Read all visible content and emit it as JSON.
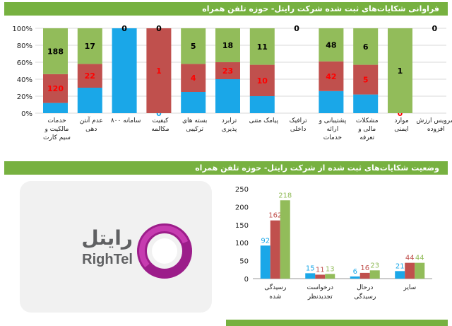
{
  "header1": {
    "title": "فراوانی شکایات‌های ثبت شده شرکت رایتل- حوزه تلفن همراه"
  },
  "header2": {
    "title": "وضعیت شکایات‌های ثبت شده از شرکت رایتل- حوزه تلفن همراه"
  },
  "logo": {
    "word": "رایتل",
    "brand": "RighTel"
  },
  "colors": {
    "green": "#92bc5a",
    "red": "#c0504d",
    "blue": "#1aa7e8",
    "band": "#77b140",
    "grid": "#d9d9d9"
  },
  "chart_data": [
    {
      "type": "bar",
      "stacked": "percent",
      "title": "فراوانی شکایات‌های ثبت شده شرکت رایتل- حوزه تلفن همراه",
      "ylim": [
        0,
        100
      ],
      "yticks": [
        "0%",
        "20%",
        "40%",
        "60%",
        "80%",
        "100%"
      ],
      "categories": [
        "خدمات مالکیت و سیم کارت",
        "عدم آنتن دهی",
        "سامانه ۸۰۰",
        "کیفیت مکالمه",
        "بسته های ترکیبی",
        "ترابرد پذیری",
        "پیامک متنی",
        "ترافیک داخلی",
        "پشتیبانی و ارائه خدمات",
        "مشکلات مالی و تعرفه",
        "موارد ایمنی",
        "سرویس ارزش افزوده"
      ],
      "series": [
        {
          "name": "blue",
          "values": [
            12,
            30,
            100,
            0,
            25,
            40,
            20,
            0,
            26,
            22,
            0,
            0
          ]
        },
        {
          "name": "red",
          "values": [
            34,
            28,
            0,
            100,
            33,
            20,
            37,
            0,
            35,
            35,
            0,
            0
          ]
        },
        {
          "name": "green",
          "values": [
            54,
            42,
            0,
            0,
            42,
            40,
            43,
            0,
            39,
            43,
            100,
            0
          ]
        }
      ],
      "labels": {
        "red": [
          "120",
          "22",
          "",
          "1",
          "4",
          "23",
          "10",
          "",
          "42",
          "5",
          "0",
          ""
        ],
        "green": [
          "188",
          "17",
          "",
          "",
          "5",
          "18",
          "11",
          "",
          "48",
          "6",
          "1",
          ""
        ],
        "blue": [
          "",
          "",
          "",
          "0",
          "",
          "",
          "",
          "",
          "",
          "",
          "",
          ""
        ],
        "top": [
          "",
          "",
          "0",
          "0",
          "",
          "",
          "",
          "0",
          "",
          "",
          "",
          "0"
        ]
      }
    },
    {
      "type": "bar",
      "title": "وضعیت شکایات‌های ثبت شده از شرکت رایتل- حوزه تلفن همراه",
      "ylim": [
        0,
        250
      ],
      "yticks": [
        "0",
        "50",
        "100",
        "150",
        "200",
        "250"
      ],
      "categories": [
        "رسیدگی شده",
        "درخواست تجدیدنظر",
        "درحال رسیدگی",
        "سایر"
      ],
      "series": [
        {
          "name": "blue",
          "values": [
            92,
            15,
            6,
            21
          ]
        },
        {
          "name": "red",
          "values": [
            162,
            11,
            16,
            44
          ]
        },
        {
          "name": "green",
          "values": [
            218,
            13,
            23,
            44
          ]
        }
      ]
    }
  ]
}
